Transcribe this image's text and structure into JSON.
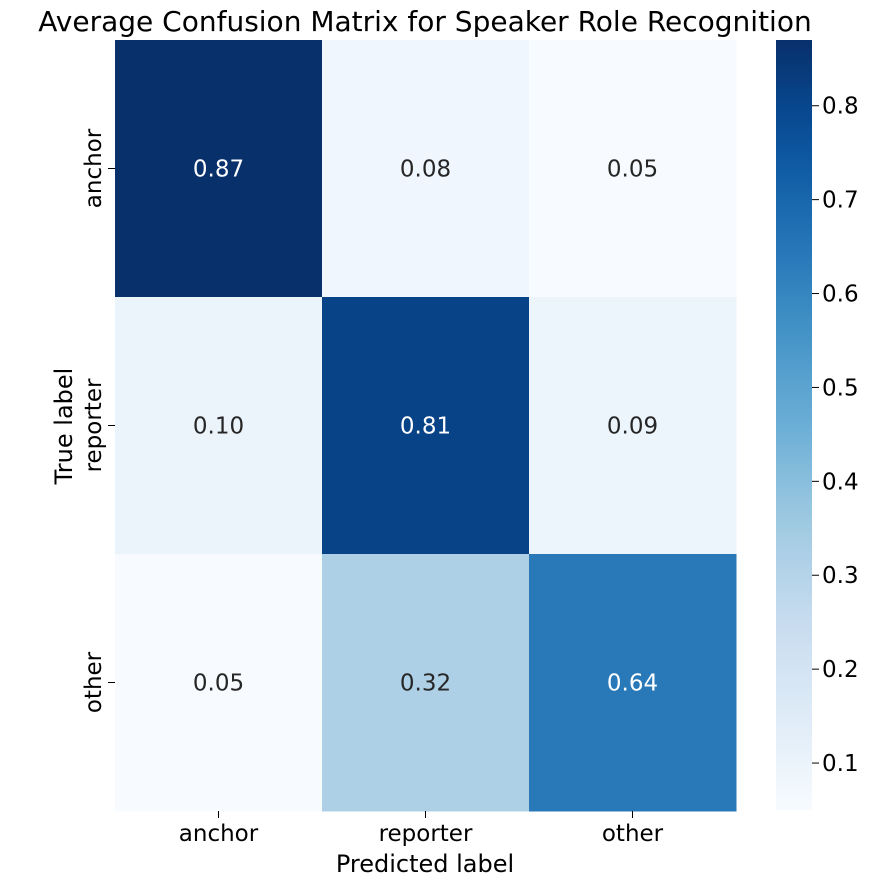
{
  "chart_data": {
    "type": "heatmap",
    "title": "Average Confusion Matrix for Speaker Role Recognition",
    "xlabel": "Predicted label",
    "ylabel": "True label",
    "x_categories": [
      "anchor",
      "reporter",
      "other"
    ],
    "y_categories": [
      "anchor",
      "reporter",
      "other"
    ],
    "values": [
      [
        0.87,
        0.08,
        0.05
      ],
      [
        0.1,
        0.81,
        0.09
      ],
      [
        0.05,
        0.32,
        0.64
      ]
    ],
    "value_labels": [
      [
        "0.87",
        "0.08",
        "0.05"
      ],
      [
        "0.10",
        "0.81",
        "0.09"
      ],
      [
        "0.05",
        "0.32",
        "0.64"
      ]
    ],
    "colormap": "Blues",
    "color_range": [
      0.05,
      0.87
    ],
    "colorbar_ticks": [
      0.1,
      0.2,
      0.3,
      0.4,
      0.5,
      0.6,
      0.7,
      0.8
    ],
    "colorbar_tick_labels": [
      "0.1",
      "0.2",
      "0.3",
      "0.4",
      "0.5",
      "0.6",
      "0.7",
      "0.8"
    ]
  }
}
